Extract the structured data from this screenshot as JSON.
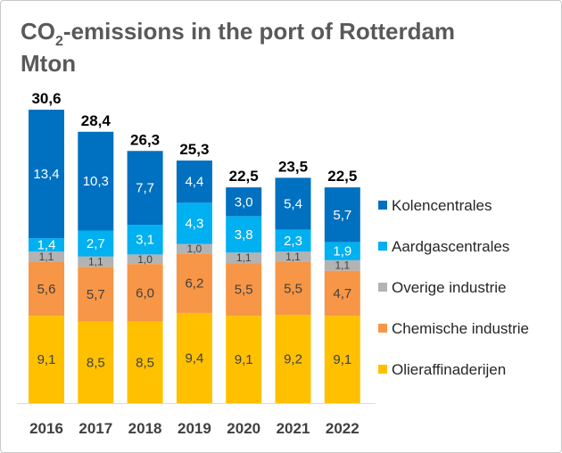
{
  "chart_data": {
    "type": "bar",
    "stacked": true,
    "title_main": "CO",
    "title_sub": "2",
    "title_rest": "-emissions  in the port of Rotterdam",
    "unit": "Mton",
    "categories": [
      "2016",
      "2017",
      "2018",
      "2019",
      "2020",
      "2021",
      "2022"
    ],
    "totals": [
      "30,6",
      "28,4",
      "26,3",
      "25,3",
      "22,5",
      "23,5",
      "22,5"
    ],
    "series": [
      {
        "name": "Olieraffinaderijen",
        "color": "#ffc000",
        "values": [
          9.1,
          8.5,
          8.5,
          9.4,
          9.1,
          9.2,
          9.1
        ],
        "labels": [
          "9,1",
          "8,5",
          "8,5",
          "9,4",
          "9,1",
          "9,2",
          "9,1"
        ]
      },
      {
        "name": "Chemische industrie",
        "color": "#f79646",
        "values": [
          5.6,
          5.7,
          6.0,
          6.2,
          5.5,
          5.5,
          4.7
        ],
        "labels": [
          "5,6",
          "5,7",
          "6,0",
          "6,2",
          "5,5",
          "5,5",
          "4,7"
        ]
      },
      {
        "name": "Overige industrie",
        "color": "#b3b3b3",
        "values": [
          1.1,
          1.1,
          1.0,
          1.0,
          1.1,
          1.1,
          1.1
        ],
        "labels": [
          "1,1",
          "1,1",
          "1,0",
          "1,0",
          "1,1",
          "1,1",
          "1,1"
        ]
      },
      {
        "name": "Aardgascentrales",
        "color": "#00b0f0",
        "values": [
          1.4,
          2.7,
          3.1,
          4.3,
          3.8,
          2.3,
          1.9
        ],
        "labels": [
          "1,4",
          "2,7",
          "3,1",
          "4,3",
          "3,8",
          "2,3",
          "1,9"
        ]
      },
      {
        "name": "Kolencentrales",
        "color": "#0070c0",
        "values": [
          13.4,
          10.3,
          7.7,
          4.4,
          3.0,
          5.4,
          5.7
        ],
        "labels": [
          "13,4",
          "10,3",
          "7,7",
          "4,4",
          "3,0",
          "5,4",
          "5,7"
        ]
      }
    ],
    "legend_order": [
      "Kolencentrales",
      "Aardgascentrales",
      "Overige industrie",
      "Chemische industrie",
      "Olieraffinaderijen"
    ],
    "legend_position": "right",
    "ylim": [
      0,
      35
    ],
    "grid": false
  }
}
